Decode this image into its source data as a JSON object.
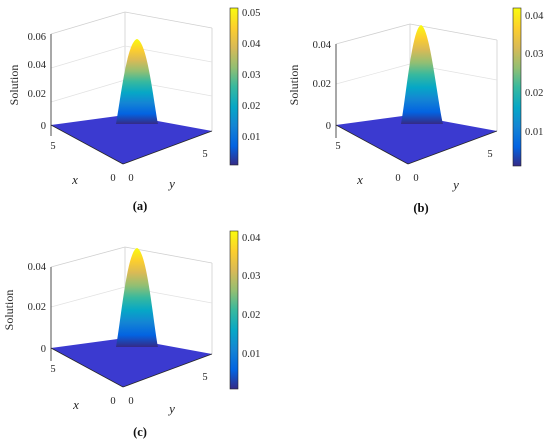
{
  "figure": {
    "panels": [
      {
        "caption": "(a)",
        "zlabel": "Solution",
        "xlabel": "x",
        "ylabel": "y"
      },
      {
        "caption": "(b)",
        "zlabel": "Solution",
        "xlabel": "x",
        "ylabel": "y"
      },
      {
        "caption": "(c)",
        "zlabel": "Solution",
        "xlabel": "x",
        "ylabel": "y"
      }
    ],
    "colormap": "parula"
  },
  "chart_data": [
    {
      "type": "surface",
      "x_ticks": [
        "0",
        "5"
      ],
      "y_ticks": [
        "0",
        "5"
      ],
      "z_ticks": [
        "0",
        "0.02",
        "0.04",
        "0.06"
      ],
      "zlim": [
        0,
        0.06
      ],
      "peak": 0.0505,
      "colorbar_ticks": [
        "0.01",
        "0.02",
        "0.03",
        "0.04",
        "0.05"
      ],
      "colorbar_range": [
        0.001,
        0.0505
      ]
    },
    {
      "type": "surface",
      "x_ticks": [
        "0",
        "5"
      ],
      "y_ticks": [
        "0",
        "5"
      ],
      "z_ticks": [
        "0",
        "0.02",
        "0.04"
      ],
      "zlim": [
        0,
        0.045
      ],
      "peak": 0.0415,
      "colorbar_ticks": [
        "0.01",
        "0.02",
        "0.03",
        "0.04"
      ],
      "colorbar_range": [
        0.001,
        0.0415
      ]
    },
    {
      "type": "surface",
      "x_ticks": [
        "0",
        "5"
      ],
      "y_ticks": [
        "0",
        "5"
      ],
      "z_ticks": [
        "0",
        "0.02",
        "0.04"
      ],
      "zlim": [
        0,
        0.045
      ],
      "peak": 0.0405,
      "colorbar_ticks": [
        "0.01",
        "0.02",
        "0.03",
        "0.04"
      ],
      "colorbar_range": [
        0.001,
        0.0405
      ]
    }
  ]
}
